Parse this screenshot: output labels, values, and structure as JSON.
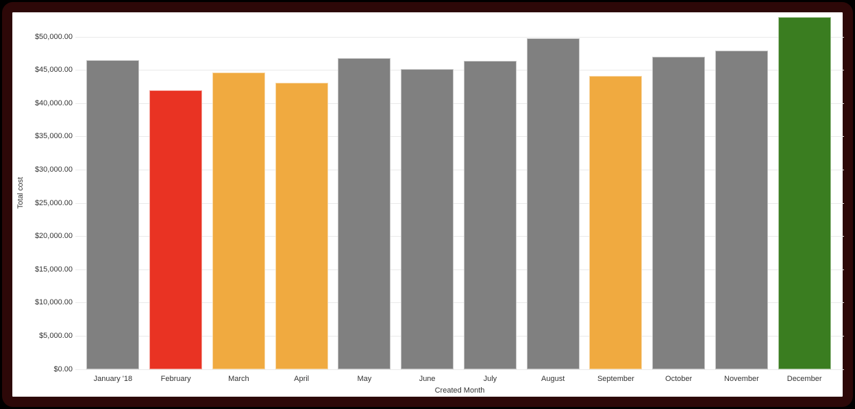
{
  "chart_data": {
    "type": "bar",
    "title": "",
    "xlabel": "Created Month",
    "ylabel": "Total cost",
    "categories": [
      "January '18",
      "February",
      "March",
      "April",
      "May",
      "June",
      "July",
      "August",
      "September",
      "October",
      "November",
      "December"
    ],
    "values": [
      46500,
      42000,
      44700,
      43100,
      46800,
      45200,
      46400,
      49800,
      44100,
      47000,
      48000,
      53000
    ],
    "bar_colors": [
      "#808080",
      "#E93323",
      "#F0AA40",
      "#F0AA40",
      "#808080",
      "#808080",
      "#808080",
      "#808080",
      "#F0AA40",
      "#808080",
      "#808080",
      "#3A7D20"
    ],
    "y_ticks": [
      {
        "value": 0,
        "label": "$0.00"
      },
      {
        "value": 5000,
        "label": "$5,000.00"
      },
      {
        "value": 10000,
        "label": "$10,000.00"
      },
      {
        "value": 15000,
        "label": "$15,000.00"
      },
      {
        "value": 20000,
        "label": "$20,000.00"
      },
      {
        "value": 25000,
        "label": "$25,000.00"
      },
      {
        "value": 30000,
        "label": "$30,000.00"
      },
      {
        "value": 35000,
        "label": "$35,000.00"
      },
      {
        "value": 40000,
        "label": "$40,000.00"
      },
      {
        "value": 45000,
        "label": "$45,000.00"
      },
      {
        "value": 50000,
        "label": "$50,000.00"
      }
    ],
    "ylim": [
      0,
      53000
    ],
    "grid": true,
    "legend": "none"
  },
  "colors": {
    "page_background": "#000000",
    "card_background": "#FFFFFF",
    "frame_border": "#2D0808",
    "gridline": "#E9E9E9",
    "axis_text": "#333333",
    "bar_gray": "#808080",
    "bar_red": "#E93323",
    "bar_orange": "#F0AA40",
    "bar_green": "#3A7D20"
  }
}
